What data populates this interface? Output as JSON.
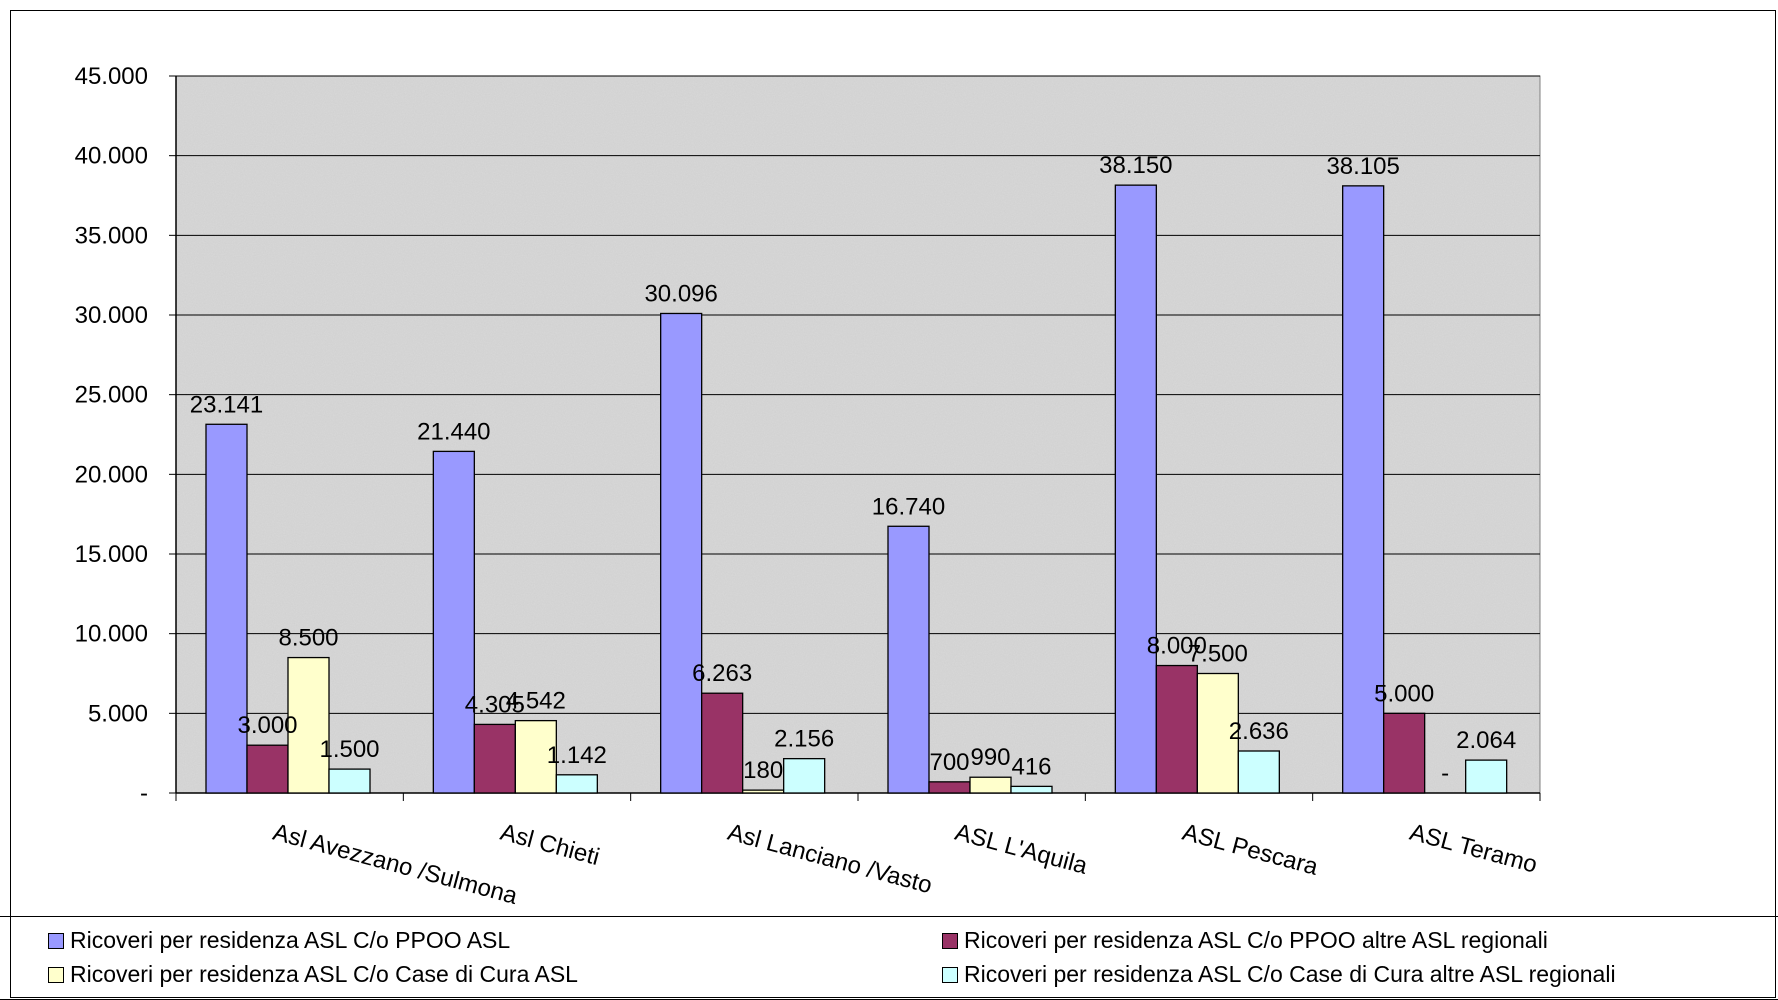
{
  "chart_data": {
    "type": "bar",
    "categories": [
      "Asl Avezzano /Sulmona",
      "Asl Chieti",
      "Asl Lanciano /Vasto",
      "ASL L'Aquila",
      "ASL Pescara",
      "ASL Teramo"
    ],
    "series": [
      {
        "name": "Ricoveri per residenza ASL C/o  PPOO ASL",
        "color": "#9999ff",
        "values": [
          23141,
          21440,
          30096,
          16740,
          38150,
          38105
        ],
        "labels": [
          "23.141",
          "21.440",
          "30.096",
          "16.740",
          "38.150",
          "38.105"
        ]
      },
      {
        "name": "Ricoveri per residenza ASL C/o  PPOO altre ASL regionali",
        "color": "#993366",
        "values": [
          3000,
          4305,
          6263,
          700,
          8000,
          5000
        ],
        "labels": [
          "3.000",
          "4.305",
          "6.263",
          "700",
          "8.000",
          "5.000"
        ]
      },
      {
        "name": "Ricoveri per residenza ASL C/o  Case di Cura ASL",
        "color": "#ffffcc",
        "values": [
          8500,
          4542,
          180,
          990,
          7500,
          0
        ],
        "labels": [
          "8.500",
          "4.542",
          "180",
          "990",
          "7.500",
          "-"
        ]
      },
      {
        "name": "Ricoveri per residenza ASL C/o  Case di Cura altre ASL regionali",
        "color": "#ccffff",
        "values": [
          1500,
          1142,
          2156,
          416,
          2636,
          2064
        ],
        "labels": [
          "1.500",
          "1.142",
          "2.156",
          "416",
          "2.636",
          "2.064"
        ]
      }
    ],
    "ylim": [
      0,
      45000
    ],
    "yticks": [
      0,
      5000,
      10000,
      15000,
      20000,
      25000,
      30000,
      35000,
      40000,
      45000
    ],
    "ytick_labels": [
      "-",
      "5.000",
      "10.000",
      "15.000",
      "20.000",
      "25.000",
      "30.000",
      "35.000",
      "40.000",
      "45.000"
    ],
    "grid": true,
    "legend_position": "bottom",
    "plot_background": "#d9d9d9"
  }
}
